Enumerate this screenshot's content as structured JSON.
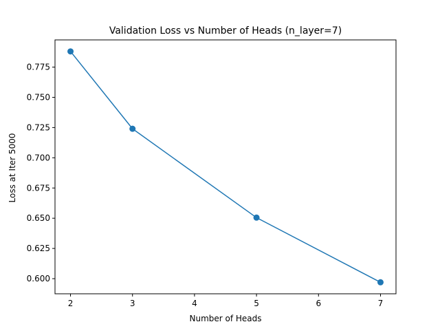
{
  "chart_data": {
    "type": "line",
    "title": "Validation Loss vs Number of Heads (n_layer=7)",
    "xlabel": "Number of Heads",
    "ylabel": "Loss at Iter 5000",
    "x": [
      2,
      3,
      5,
      7
    ],
    "series": [
      {
        "values": [
          0.788,
          0.724,
          0.6505,
          0.597
        ],
        "color": "#1f77b4",
        "marker": "circle"
      }
    ],
    "xlim": [
      1.75,
      7.25
    ],
    "ylim": [
      0.5875,
      0.7975
    ],
    "xticks": [
      2,
      3,
      4,
      5,
      6,
      7
    ],
    "xtick_labels": [
      "2",
      "3",
      "4",
      "5",
      "6",
      "7"
    ],
    "yticks": [
      0.6,
      0.625,
      0.65,
      0.675,
      0.7,
      0.725,
      0.75,
      0.775
    ],
    "ytick_labels": [
      "0.600",
      "0.625",
      "0.650",
      "0.675",
      "0.700",
      "0.725",
      "0.750",
      "0.775"
    ],
    "grid": false,
    "legend": false
  }
}
